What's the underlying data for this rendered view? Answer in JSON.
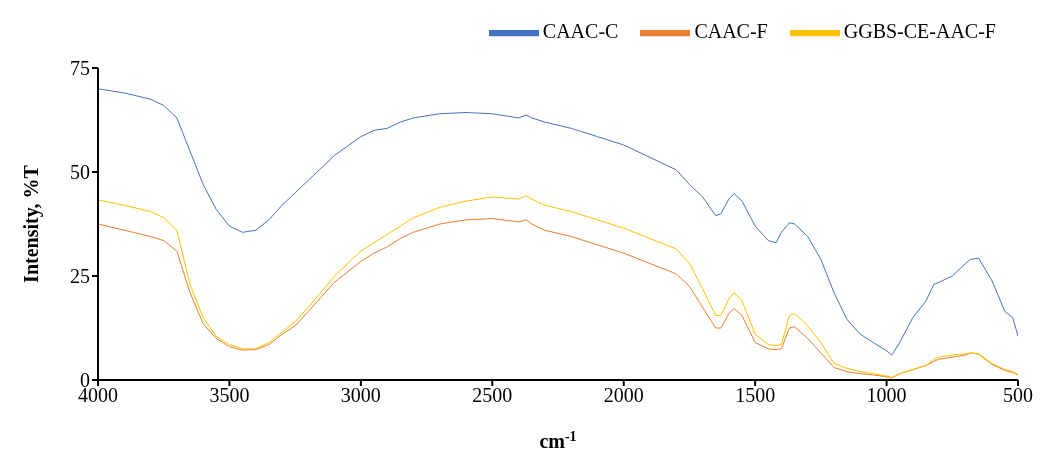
{
  "chart_data": {
    "type": "line",
    "xlabel": "cm$^{-1}$",
    "ylabel": "Intensity, %T",
    "x": [
      4000,
      3900,
      3800,
      3750,
      3700,
      3650,
      3600,
      3550,
      3500,
      3450,
      3400,
      3350,
      3300,
      3250,
      3200,
      3100,
      3000,
      2950,
      2900,
      2850,
      2800,
      2700,
      2600,
      2500,
      2400,
      2370,
      2350,
      2300,
      2200,
      2100,
      2000,
      1900,
      1800,
      1750,
      1700,
      1650,
      1630,
      1600,
      1580,
      1550,
      1500,
      1450,
      1420,
      1400,
      1370,
      1350,
      1300,
      1250,
      1200,
      1150,
      1100,
      1050,
      1000,
      980,
      950,
      900,
      850,
      820,
      800,
      750,
      700,
      680,
      650,
      600,
      550,
      520,
      500
    ],
    "series": [
      {
        "name": "CAAC-C",
        "color": "#4472c4",
        "values": [
          70,
          69,
          67.5,
          66,
          63,
          55,
          47,
          41,
          37,
          35.5,
          36,
          38.5,
          42,
          45,
          48,
          54,
          58.5,
          60,
          60.5,
          62,
          63,
          64,
          64.3,
          64,
          63,
          63.7,
          63,
          62,
          60.5,
          58.5,
          56.5,
          53.5,
          50.5,
          47,
          44,
          39.5,
          40,
          43.5,
          44.8,
          43,
          37,
          33.5,
          33,
          35.5,
          37.8,
          37.5,
          34.5,
          29,
          21,
          14.5,
          11,
          9,
          7,
          6,
          9,
          15,
          19,
          23,
          23.5,
          25,
          28,
          29,
          29.3,
          24,
          16.5,
          15,
          10.5
        ]
      },
      {
        "name": "CAAC-F",
        "color": "#ed7d31",
        "values": [
          37.5,
          36,
          34.5,
          33.5,
          31,
          21,
          13.5,
          10,
          8,
          7.2,
          7.3,
          8.5,
          11,
          13,
          16.5,
          23.5,
          28.5,
          30.5,
          32,
          34,
          35.5,
          37.5,
          38.5,
          38.8,
          38,
          38.5,
          37.5,
          36,
          34.5,
          32.5,
          30.5,
          28,
          25.5,
          22.5,
          17.5,
          12.5,
          12.5,
          16,
          17.2,
          15.5,
          9,
          7.5,
          7.3,
          7.5,
          12.5,
          12.8,
          10,
          6.5,
          3,
          2,
          1.5,
          1.2,
          0.8,
          0.5,
          1.5,
          2.5,
          3.5,
          4.5,
          5,
          5.5,
          6,
          6.5,
          6.2,
          3.8,
          2.3,
          1.8,
          1.2
        ]
      },
      {
        "name": "GGBS-CE-AAC-F",
        "color": "#ffc000",
        "values": [
          43.3,
          42,
          40.5,
          39,
          36,
          23,
          15,
          10.5,
          8.5,
          7.5,
          7.5,
          9,
          11.5,
          14,
          17.5,
          25,
          31,
          33,
          35,
          37,
          39,
          41.5,
          43,
          44,
          43.5,
          44.3,
          43.5,
          42,
          40.5,
          38.5,
          36.5,
          34,
          31.5,
          28,
          22,
          15.5,
          15.5,
          19.5,
          21,
          19,
          11,
          8.5,
          8.3,
          8.5,
          15.5,
          16,
          13,
          9,
          4,
          2.8,
          2,
          1.5,
          1,
          0.6,
          1.5,
          2.5,
          3.5,
          5,
          5.5,
          6,
          6.3,
          6.5,
          6.3,
          4,
          2.5,
          2,
          1.3
        ]
      }
    ],
    "xlim": [
      4000,
      500
    ],
    "xticks": [
      4000,
      3500,
      3000,
      2500,
      2000,
      1500,
      1000,
      500
    ],
    "ylim": [
      0,
      75
    ],
    "yticks": [
      0,
      25,
      50,
      75
    ],
    "grid": false,
    "legend": "top right",
    "marker": "none",
    "line_style": "solid"
  }
}
